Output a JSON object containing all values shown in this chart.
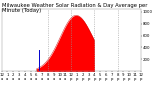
{
  "title": "Milwaukee Weather Solar Radiation & Day Average per Minute (Today)",
  "bg_color": "#ffffff",
  "fill_color": "#ff0000",
  "line_color": "#cc0000",
  "avg_line_color": "#0000cc",
  "dashed_line_color": "#aaaaaa",
  "xlim": [
    0,
    1440
  ],
  "ylim": [
    0,
    1050
  ],
  "peak_minute": 770,
  "peak_value": 940,
  "dawn": 360,
  "dusk": 1260,
  "current_minute": 960,
  "avg_marker_minute": 390,
  "dashed_lines": [
    480,
    720,
    960,
    1200
  ],
  "y_ticks": [
    200,
    400,
    600,
    800,
    1000
  ],
  "x_ticks": [
    0,
    60,
    120,
    180,
    240,
    300,
    360,
    420,
    480,
    540,
    600,
    660,
    720,
    780,
    840,
    900,
    960,
    1020,
    1080,
    1140,
    1200,
    1260,
    1320,
    1380,
    1440
  ],
  "title_fontsize": 3.8,
  "tick_fontsize": 2.8
}
